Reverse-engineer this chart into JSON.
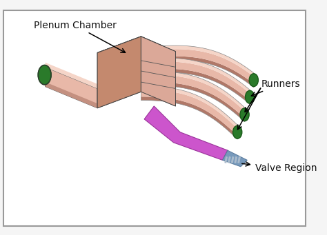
{
  "bg_color": "#f5f5f5",
  "border_color": "#999999",
  "plenum_dark": "#a06855",
  "plenum_mid": "#c4896e",
  "plenum_light": "#dba898",
  "runner_base": "#e8b8a8",
  "runner_light": "#f5d5c8",
  "runner_dark": "#c49080",
  "runner_shadow": "#b07868",
  "green_fill": "#2a7a2a",
  "green_edge": "#1a5a1a",
  "valve_fill": "#cc55cc",
  "valve_edge": "#993399",
  "valve_detail": "#7799bb",
  "valve_stripe": "#aabbcc",
  "label_plenum": "Plenum Chamber",
  "label_runners": "Runners",
  "label_valve": "Valve Region",
  "label_fs": 10,
  "fig_width": 4.74,
  "fig_height": 3.41,
  "dpi": 100
}
